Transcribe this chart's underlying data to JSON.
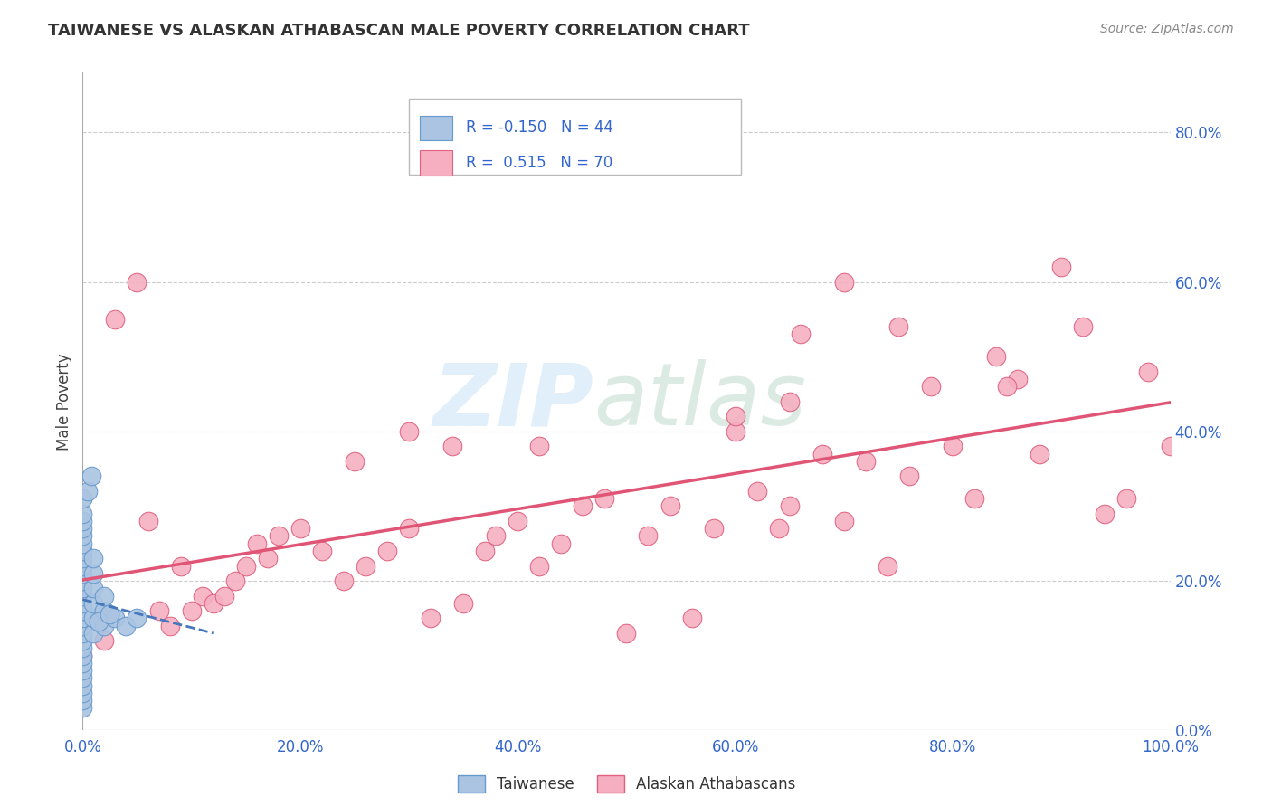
{
  "title": "TAIWANESE VS ALASKAN ATHABASCAN MALE POVERTY CORRELATION CHART",
  "source": "Source: ZipAtlas.com",
  "ylabel": "Male Poverty",
  "xlim": [
    0.0,
    1.0
  ],
  "ylim": [
    0.0,
    0.88
  ],
  "x_ticks": [
    0.0,
    0.2,
    0.4,
    0.6,
    0.8,
    1.0
  ],
  "x_tick_labels": [
    "0.0%",
    "20.0%",
    "40.0%",
    "60.0%",
    "80.0%",
    "100.0%"
  ],
  "y_ticks_right": [
    0.0,
    0.2,
    0.4,
    0.6,
    0.8
  ],
  "y_tick_labels_right": [
    "0.0%",
    "20.0%",
    "40.0%",
    "60.0%",
    "80.0%"
  ],
  "taiwanese_color": "#aac4e2",
  "athabascan_color": "#f5afc0",
  "taiwanese_edge_color": "#6699cc",
  "athabascan_edge_color": "#e06080",
  "taiwanese_line_color": "#4477bb",
  "athabascan_line_color": "#e05575",
  "background_color": "#ffffff",
  "grid_color": "#cccccc",
  "taiwanese_x": [
    0.0,
    0.0,
    0.0,
    0.0,
    0.0,
    0.0,
    0.0,
    0.0,
    0.0,
    0.0,
    0.0,
    0.0,
    0.0,
    0.0,
    0.0,
    0.0,
    0.0,
    0.0,
    0.0,
    0.0,
    0.0,
    0.0,
    0.0,
    0.0,
    0.0,
    0.0,
    0.0,
    0.0,
    0.01,
    0.01,
    0.01,
    0.01,
    0.01,
    0.01,
    0.02,
    0.02,
    0.02,
    0.03,
    0.04,
    0.05,
    0.005,
    0.008,
    0.015,
    0.025
  ],
  "taiwanese_y": [
    0.03,
    0.04,
    0.05,
    0.06,
    0.07,
    0.08,
    0.09,
    0.1,
    0.11,
    0.12,
    0.13,
    0.14,
    0.15,
    0.16,
    0.17,
    0.18,
    0.19,
    0.2,
    0.21,
    0.22,
    0.23,
    0.24,
    0.25,
    0.26,
    0.27,
    0.28,
    0.29,
    0.31,
    0.13,
    0.15,
    0.17,
    0.19,
    0.21,
    0.23,
    0.14,
    0.16,
    0.18,
    0.15,
    0.14,
    0.15,
    0.32,
    0.34,
    0.145,
    0.155
  ],
  "athabascan_x": [
    0.0,
    0.02,
    0.03,
    0.06,
    0.08,
    0.09,
    0.1,
    0.11,
    0.12,
    0.13,
    0.14,
    0.15,
    0.16,
    0.17,
    0.18,
    0.2,
    0.22,
    0.24,
    0.26,
    0.28,
    0.3,
    0.32,
    0.34,
    0.35,
    0.37,
    0.38,
    0.4,
    0.42,
    0.44,
    0.46,
    0.48,
    0.5,
    0.52,
    0.54,
    0.56,
    0.58,
    0.6,
    0.62,
    0.64,
    0.65,
    0.66,
    0.68,
    0.7,
    0.72,
    0.74,
    0.76,
    0.78,
    0.8,
    0.82,
    0.84,
    0.86,
    0.88,
    0.9,
    0.92,
    0.94,
    0.96,
    0.98,
    1.0,
    0.05,
    0.07,
    0.25,
    0.3,
    0.42,
    0.6,
    0.65,
    0.7,
    0.75,
    0.85
  ],
  "athabascan_y": [
    0.1,
    0.12,
    0.55,
    0.28,
    0.14,
    0.22,
    0.16,
    0.18,
    0.17,
    0.18,
    0.2,
    0.22,
    0.25,
    0.23,
    0.26,
    0.27,
    0.24,
    0.2,
    0.22,
    0.24,
    0.27,
    0.15,
    0.38,
    0.17,
    0.24,
    0.26,
    0.28,
    0.22,
    0.25,
    0.3,
    0.31,
    0.13,
    0.26,
    0.3,
    0.15,
    0.27,
    0.4,
    0.32,
    0.27,
    0.3,
    0.53,
    0.37,
    0.28,
    0.36,
    0.22,
    0.34,
    0.46,
    0.38,
    0.31,
    0.5,
    0.47,
    0.37,
    0.62,
    0.54,
    0.29,
    0.31,
    0.48,
    0.38,
    0.6,
    0.16,
    0.36,
    0.4,
    0.38,
    0.42,
    0.44,
    0.6,
    0.54,
    0.46
  ],
  "legend_text_color": "#3366cc",
  "tick_color": "#3366cc",
  "title_color": "#333333",
  "source_color": "#888888"
}
